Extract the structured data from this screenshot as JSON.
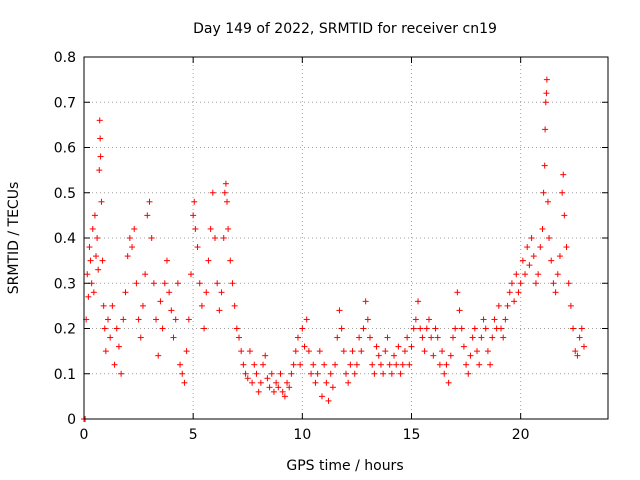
{
  "chart_data": {
    "type": "scatter",
    "title": "Day 149 of 2022, SRMTID for receiver cn19",
    "xlabel": "GPS time / hours",
    "ylabel": "SRMTID / TECUs",
    "xlim": [
      0,
      24
    ],
    "ylim": [
      0,
      0.8
    ],
    "xticks": [
      0,
      5,
      10,
      15,
      20
    ],
    "xtick_labels": [
      "0",
      "5",
      "10",
      "15",
      "20"
    ],
    "yticks": [
      0,
      0.1,
      0.2,
      0.3,
      0.4,
      0.5,
      0.6,
      0.7,
      0.8
    ],
    "ytick_labels": [
      "0",
      "0.1",
      "0.2",
      "0.3",
      "0.4",
      "0.5",
      "0.6",
      "0.7",
      "0.8"
    ],
    "grid": true,
    "marker": "+",
    "color": "#ff0000",
    "series": [
      {
        "name": "SRMTID",
        "points": [
          [
            0.0,
            0.0
          ],
          [
            0.05,
            0.0
          ],
          [
            0.1,
            0.22
          ],
          [
            0.15,
            0.32
          ],
          [
            0.2,
            0.27
          ],
          [
            0.25,
            0.38
          ],
          [
            0.3,
            0.35
          ],
          [
            0.35,
            0.3
          ],
          [
            0.4,
            0.42
          ],
          [
            0.45,
            0.28
          ],
          [
            0.5,
            0.45
          ],
          [
            0.55,
            0.36
          ],
          [
            0.6,
            0.4
          ],
          [
            0.65,
            0.33
          ],
          [
            0.7,
            0.55
          ],
          [
            0.72,
            0.66
          ],
          [
            0.74,
            0.62
          ],
          [
            0.76,
            0.58
          ],
          [
            0.8,
            0.48
          ],
          [
            0.85,
            0.35
          ],
          [
            0.9,
            0.25
          ],
          [
            0.95,
            0.2
          ],
          [
            1.0,
            0.15
          ],
          [
            1.1,
            0.22
          ],
          [
            1.2,
            0.18
          ],
          [
            1.3,
            0.25
          ],
          [
            1.4,
            0.12
          ],
          [
            1.5,
            0.2
          ],
          [
            1.6,
            0.16
          ],
          [
            1.7,
            0.1
          ],
          [
            1.8,
            0.22
          ],
          [
            1.9,
            0.28
          ],
          [
            2.0,
            0.36
          ],
          [
            2.1,
            0.4
          ],
          [
            2.2,
            0.38
          ],
          [
            2.3,
            0.42
          ],
          [
            2.4,
            0.3
          ],
          [
            2.5,
            0.22
          ],
          [
            2.6,
            0.18
          ],
          [
            2.7,
            0.25
          ],
          [
            2.8,
            0.32
          ],
          [
            2.9,
            0.45
          ],
          [
            3.0,
            0.48
          ],
          [
            3.1,
            0.4
          ],
          [
            3.2,
            0.3
          ],
          [
            3.3,
            0.22
          ],
          [
            3.4,
            0.14
          ],
          [
            3.5,
            0.26
          ],
          [
            3.6,
            0.2
          ],
          [
            3.7,
            0.3
          ],
          [
            3.8,
            0.35
          ],
          [
            3.9,
            0.28
          ],
          [
            4.0,
            0.24
          ],
          [
            4.1,
            0.18
          ],
          [
            4.2,
            0.22
          ],
          [
            4.3,
            0.3
          ],
          [
            4.4,
            0.12
          ],
          [
            4.5,
            0.1
          ],
          [
            4.6,
            0.08
          ],
          [
            4.7,
            0.15
          ],
          [
            4.8,
            0.22
          ],
          [
            4.9,
            0.32
          ],
          [
            5.0,
            0.45
          ],
          [
            5.05,
            0.48
          ],
          [
            5.1,
            0.42
          ],
          [
            5.2,
            0.38
          ],
          [
            5.3,
            0.3
          ],
          [
            5.4,
            0.25
          ],
          [
            5.5,
            0.2
          ],
          [
            5.6,
            0.28
          ],
          [
            5.7,
            0.35
          ],
          [
            5.8,
            0.42
          ],
          [
            5.9,
            0.5
          ],
          [
            6.0,
            0.4
          ],
          [
            6.1,
            0.3
          ],
          [
            6.2,
            0.24
          ],
          [
            6.3,
            0.28
          ],
          [
            6.4,
            0.4
          ],
          [
            6.45,
            0.5
          ],
          [
            6.5,
            0.52
          ],
          [
            6.55,
            0.48
          ],
          [
            6.6,
            0.42
          ],
          [
            6.7,
            0.35
          ],
          [
            6.8,
            0.3
          ],
          [
            6.9,
            0.25
          ],
          [
            7.0,
            0.2
          ],
          [
            7.1,
            0.18
          ],
          [
            7.2,
            0.15
          ],
          [
            7.3,
            0.12
          ],
          [
            7.4,
            0.1
          ],
          [
            7.5,
            0.09
          ],
          [
            7.6,
            0.15
          ],
          [
            7.7,
            0.08
          ],
          [
            7.8,
            0.12
          ],
          [
            7.9,
            0.1
          ],
          [
            8.0,
            0.06
          ],
          [
            8.1,
            0.08
          ],
          [
            8.2,
            0.12
          ],
          [
            8.3,
            0.14
          ],
          [
            8.4,
            0.09
          ],
          [
            8.5,
            0.07
          ],
          [
            8.6,
            0.1
          ],
          [
            8.7,
            0.06
          ],
          [
            8.8,
            0.08
          ],
          [
            8.9,
            0.07
          ],
          [
            9.0,
            0.1
          ],
          [
            9.1,
            0.06
          ],
          [
            9.2,
            0.05
          ],
          [
            9.3,
            0.08
          ],
          [
            9.4,
            0.07
          ],
          [
            9.5,
            0.1
          ],
          [
            9.6,
            0.12
          ],
          [
            9.7,
            0.15
          ],
          [
            9.8,
            0.18
          ],
          [
            9.9,
            0.12
          ],
          [
            10.0,
            0.2
          ],
          [
            10.1,
            0.16
          ],
          [
            10.2,
            0.22
          ],
          [
            10.3,
            0.15
          ],
          [
            10.4,
            0.1
          ],
          [
            10.5,
            0.12
          ],
          [
            10.6,
            0.08
          ],
          [
            10.7,
            0.1
          ],
          [
            10.8,
            0.15
          ],
          [
            10.9,
            0.05
          ],
          [
            11.0,
            0.12
          ],
          [
            11.1,
            0.08
          ],
          [
            11.2,
            0.04
          ],
          [
            11.3,
            0.1
          ],
          [
            11.4,
            0.07
          ],
          [
            11.5,
            0.12
          ],
          [
            11.6,
            0.18
          ],
          [
            11.7,
            0.24
          ],
          [
            11.8,
            0.2
          ],
          [
            11.9,
            0.15
          ],
          [
            12.0,
            0.1
          ],
          [
            12.1,
            0.08
          ],
          [
            12.2,
            0.12
          ],
          [
            12.3,
            0.15
          ],
          [
            12.4,
            0.1
          ],
          [
            12.5,
            0.12
          ],
          [
            12.6,
            0.18
          ],
          [
            12.7,
            0.15
          ],
          [
            12.8,
            0.2
          ],
          [
            12.9,
            0.26
          ],
          [
            13.0,
            0.22
          ],
          [
            13.1,
            0.18
          ],
          [
            13.2,
            0.12
          ],
          [
            13.3,
            0.1
          ],
          [
            13.4,
            0.16
          ],
          [
            13.5,
            0.14
          ],
          [
            13.6,
            0.12
          ],
          [
            13.7,
            0.1
          ],
          [
            13.8,
            0.15
          ],
          [
            13.9,
            0.18
          ],
          [
            14.0,
            0.12
          ],
          [
            14.1,
            0.1
          ],
          [
            14.2,
            0.14
          ],
          [
            14.3,
            0.12
          ],
          [
            14.4,
            0.16
          ],
          [
            14.5,
            0.1
          ],
          [
            14.6,
            0.12
          ],
          [
            14.7,
            0.15
          ],
          [
            14.8,
            0.18
          ],
          [
            14.9,
            0.12
          ],
          [
            15.0,
            0.16
          ],
          [
            15.1,
            0.2
          ],
          [
            15.2,
            0.22
          ],
          [
            15.3,
            0.26
          ],
          [
            15.4,
            0.2
          ],
          [
            15.5,
            0.18
          ],
          [
            15.6,
            0.15
          ],
          [
            15.7,
            0.2
          ],
          [
            15.8,
            0.22
          ],
          [
            15.9,
            0.18
          ],
          [
            16.0,
            0.14
          ],
          [
            16.1,
            0.2
          ],
          [
            16.2,
            0.18
          ],
          [
            16.3,
            0.12
          ],
          [
            16.4,
            0.15
          ],
          [
            16.5,
            0.1
          ],
          [
            16.6,
            0.12
          ],
          [
            16.7,
            0.08
          ],
          [
            16.8,
            0.14
          ],
          [
            16.9,
            0.18
          ],
          [
            17.0,
            0.2
          ],
          [
            17.1,
            0.28
          ],
          [
            17.2,
            0.24
          ],
          [
            17.3,
            0.2
          ],
          [
            17.4,
            0.16
          ],
          [
            17.5,
            0.12
          ],
          [
            17.6,
            0.1
          ],
          [
            17.7,
            0.14
          ],
          [
            17.8,
            0.18
          ],
          [
            17.9,
            0.2
          ],
          [
            18.0,
            0.15
          ],
          [
            18.1,
            0.12
          ],
          [
            18.2,
            0.18
          ],
          [
            18.3,
            0.22
          ],
          [
            18.4,
            0.2
          ],
          [
            18.5,
            0.15
          ],
          [
            18.6,
            0.12
          ],
          [
            18.7,
            0.18
          ],
          [
            18.8,
            0.22
          ],
          [
            18.9,
            0.2
          ],
          [
            19.0,
            0.25
          ],
          [
            19.1,
            0.2
          ],
          [
            19.2,
            0.18
          ],
          [
            19.3,
            0.22
          ],
          [
            19.4,
            0.25
          ],
          [
            19.5,
            0.28
          ],
          [
            19.6,
            0.3
          ],
          [
            19.7,
            0.26
          ],
          [
            19.8,
            0.32
          ],
          [
            19.9,
            0.28
          ],
          [
            20.0,
            0.3
          ],
          [
            20.1,
            0.35
          ],
          [
            20.2,
            0.32
          ],
          [
            20.3,
            0.38
          ],
          [
            20.4,
            0.34
          ],
          [
            20.5,
            0.4
          ],
          [
            20.6,
            0.36
          ],
          [
            20.7,
            0.3
          ],
          [
            20.8,
            0.32
          ],
          [
            20.9,
            0.38
          ],
          [
            21.0,
            0.42
          ],
          [
            21.05,
            0.5
          ],
          [
            21.1,
            0.56
          ],
          [
            21.12,
            0.64
          ],
          [
            21.15,
            0.7
          ],
          [
            21.18,
            0.72
          ],
          [
            21.2,
            0.75
          ],
          [
            21.25,
            0.48
          ],
          [
            21.3,
            0.4
          ],
          [
            21.4,
            0.35
          ],
          [
            21.5,
            0.3
          ],
          [
            21.6,
            0.28
          ],
          [
            21.7,
            0.32
          ],
          [
            21.8,
            0.36
          ],
          [
            21.9,
            0.5
          ],
          [
            21.95,
            0.54
          ],
          [
            22.0,
            0.45
          ],
          [
            22.1,
            0.38
          ],
          [
            22.2,
            0.3
          ],
          [
            22.3,
            0.25
          ],
          [
            22.4,
            0.2
          ],
          [
            22.5,
            0.15
          ],
          [
            22.6,
            0.14
          ],
          [
            22.7,
            0.18
          ],
          [
            22.8,
            0.2
          ],
          [
            22.9,
            0.16
          ]
        ]
      }
    ]
  }
}
